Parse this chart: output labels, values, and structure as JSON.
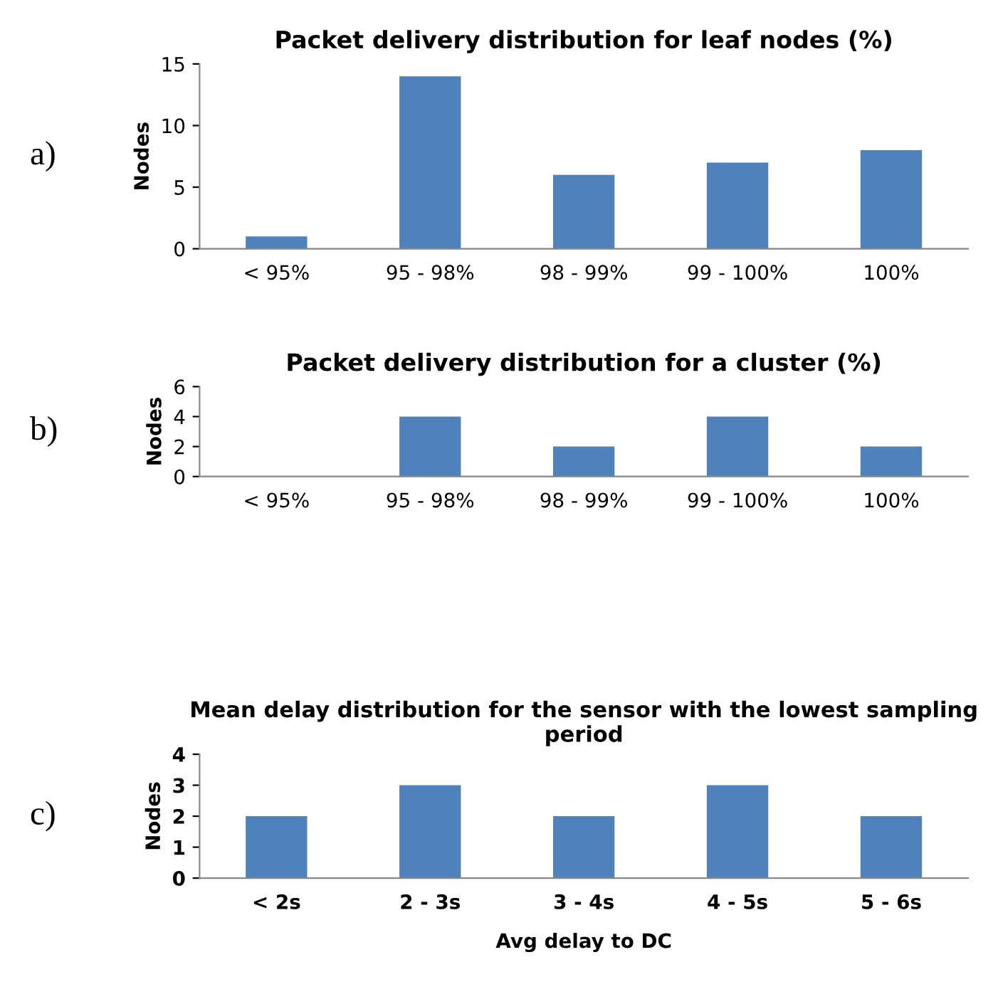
{
  "chart_data": [
    {
      "type": "bar",
      "title": "Packet delivery distribution for leaf nodes (%)",
      "ylabel": "Nodes",
      "categories": [
        "< 95%",
        "95 - 98%",
        "98 - 99%",
        "99 - 100%",
        "100%"
      ],
      "values": [
        1,
        14,
        6,
        7,
        8
      ],
      "color": "#4f81bd",
      "ylim": [
        0,
        15
      ],
      "yticks": [
        0,
        5,
        10,
        15
      ],
      "annotations": [
        "a)"
      ]
    },
    {
      "type": "bar",
      "title": "Packet delivery distribution for a cluster (%)",
      "ylabel": "Nodes",
      "categories": [
        "< 95%",
        "95 - 98%",
        "98 - 99%",
        "99 - 100%",
        "100%"
      ],
      "values": [
        0,
        4,
        2,
        4,
        2
      ],
      "color": "#4f81bd",
      "ylim": [
        0,
        6
      ],
      "yticks": [
        0,
        2,
        4,
        6
      ],
      "annotations": [
        "b)"
      ]
    },
    {
      "type": "bar",
      "title": "Mean delay distribution for the sensor with the lowest sampling period",
      "ylabel": "Nodes",
      "xlabel": "Avg delay to DC",
      "categories": [
        "< 2s",
        "2 - 3s",
        "3 - 4s",
        "4 - 5s",
        "5 - 6s"
      ],
      "values": [
        2,
        3,
        2,
        3,
        2
      ],
      "color": "#4f81bd",
      "ylim": [
        0,
        4
      ],
      "yticks": [
        0,
        1,
        2,
        3,
        4
      ],
      "annotations": [
        "c)"
      ]
    }
  ]
}
